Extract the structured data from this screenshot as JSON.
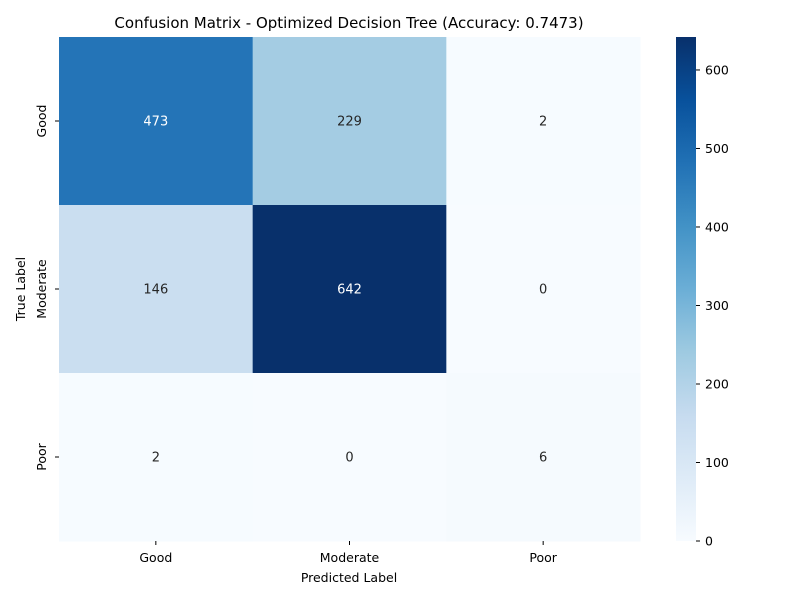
{
  "chart_data": {
    "type": "heatmap",
    "title": "Confusion Matrix - Optimized Decision Tree (Accuracy: 0.7473)",
    "xlabel": "Predicted Label",
    "ylabel": "True Label",
    "x_categories": [
      "Good",
      "Moderate",
      "Poor"
    ],
    "y_categories": [
      "Good",
      "Moderate",
      "Poor"
    ],
    "values": [
      [
        473,
        229,
        2
      ],
      [
        146,
        642,
        0
      ],
      [
        2,
        0,
        6
      ]
    ],
    "colormap": "Blues",
    "vmin": 0,
    "vmax": 642,
    "colorbar_ticks": [
      0,
      100,
      200,
      300,
      400,
      500,
      600
    ],
    "colorbar_tick_labels": [
      "0",
      "100",
      "200",
      "300",
      "400",
      "500",
      "600"
    ],
    "grid": false,
    "annotations": true
  }
}
